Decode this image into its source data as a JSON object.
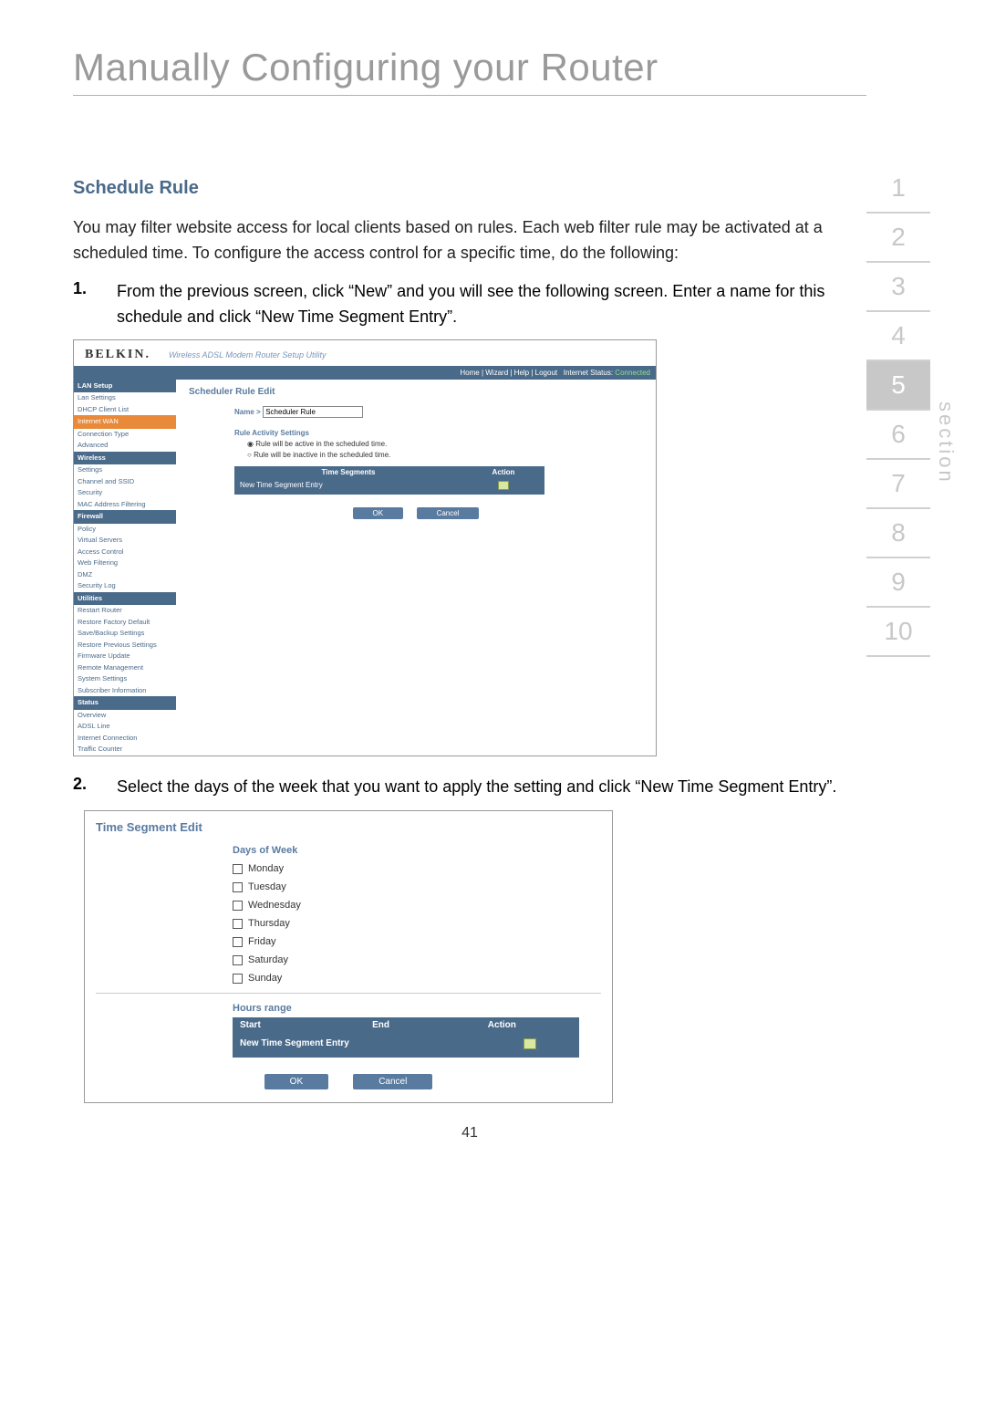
{
  "title": "Manually Configuring your Router",
  "section_heading": "Schedule Rule",
  "intro": "You may filter website access for local clients based on rules. Each web filter rule may be activated at a scheduled time. To configure the access control for a specific time, do the following:",
  "step1_num": "1.",
  "step1_txt": "From the previous screen, click “New” and you will see the following screen. Enter a name for this schedule and click “New Time Segment Entry”.",
  "step2_num": "2.",
  "step2_txt": "Select the days of the week that you want to apply the setting and click “New Time Segment Entry”.",
  "page_number": "41",
  "section_word": "section",
  "sections": [
    "1",
    "2",
    "3",
    "4",
    "5",
    "6",
    "7",
    "8",
    "9",
    "10"
  ],
  "active_section_index": 4,
  "shot1": {
    "logo": "BELKIN.",
    "utility_subtitle": "Wireless ADSL Modem Router Setup Utility",
    "topnav": {
      "links": "Home | Wizard | Help | Logout",
      "status_label": "Internet Status:",
      "status_value": "Connected"
    },
    "sidebar": [
      {
        "type": "hd",
        "label": "LAN Setup"
      },
      {
        "type": "it",
        "label": "Lan Settings"
      },
      {
        "type": "it",
        "label": "DHCP Client List"
      },
      {
        "type": "sel",
        "label": "Internet WAN"
      },
      {
        "type": "it",
        "label": "Connection Type"
      },
      {
        "type": "it",
        "label": "Advanced"
      },
      {
        "type": "hd",
        "label": "Wireless"
      },
      {
        "type": "it",
        "label": "Settings"
      },
      {
        "type": "it",
        "label": "Channel and SSID"
      },
      {
        "type": "it",
        "label": "Security"
      },
      {
        "type": "it",
        "label": "MAC Address Filtering"
      },
      {
        "type": "hd",
        "label": "Firewall"
      },
      {
        "type": "it",
        "label": "Policy"
      },
      {
        "type": "it",
        "label": "Virtual Servers"
      },
      {
        "type": "it",
        "label": "Access Control"
      },
      {
        "type": "it",
        "label": "Web Filtering"
      },
      {
        "type": "it",
        "label": "DMZ"
      },
      {
        "type": "it",
        "label": "Security Log"
      },
      {
        "type": "hd",
        "label": "Utilities"
      },
      {
        "type": "it",
        "label": "Restart Router"
      },
      {
        "type": "it",
        "label": "Restore Factory Default"
      },
      {
        "type": "it",
        "label": "Save/Backup Settings"
      },
      {
        "type": "it",
        "label": "Restore Previous Settings"
      },
      {
        "type": "it",
        "label": "Firmware Update"
      },
      {
        "type": "it",
        "label": "Remote Management"
      },
      {
        "type": "it",
        "label": "System Settings"
      },
      {
        "type": "it",
        "label": "Subscriber Information"
      },
      {
        "type": "hd",
        "label": "Status"
      },
      {
        "type": "it",
        "label": "Overview"
      },
      {
        "type": "it",
        "label": "ADSL Line"
      },
      {
        "type": "it",
        "label": "Internet Connection"
      },
      {
        "type": "it",
        "label": "Traffic Counter"
      }
    ],
    "panel_title": "Scheduler Rule Edit",
    "name_label": "Name >",
    "name_value": "Scheduler Rule",
    "activity_heading": "Rule Activity Settings",
    "radio_active": "Rule will be active in the scheduled time.",
    "radio_inactive": "Rule will be inactive in the scheduled time.",
    "col_time": "Time Segments",
    "col_action": "Action",
    "row_entry": "New Time Segment Entry",
    "btn_ok": "OK",
    "btn_cancel": "Cancel"
  },
  "shot2": {
    "panel_title": "Time Segment Edit",
    "dow_heading": "Days of Week",
    "days": [
      "Monday",
      "Tuesday",
      "Wednesday",
      "Thursday",
      "Friday",
      "Saturday",
      "Sunday"
    ],
    "hours_heading": "Hours range",
    "col_start": "Start",
    "col_end": "End",
    "col_action": "Action",
    "row_entry": "New Time Segment Entry",
    "btn_ok": "OK",
    "btn_cancel": "Cancel"
  },
  "colors": {
    "heading_gray": "#9a9a9a",
    "teal_heading": "#4a6a8a",
    "sidebar_header": "#4a6a8a",
    "sidebar_selected": "#e88a3a",
    "link_blue": "#4a6a8a",
    "table_bg": "#4a6a8a",
    "button_bg": "#5a7ba0",
    "status_green": "#8ee08e",
    "section_inactive": "#c8c8c8"
  }
}
